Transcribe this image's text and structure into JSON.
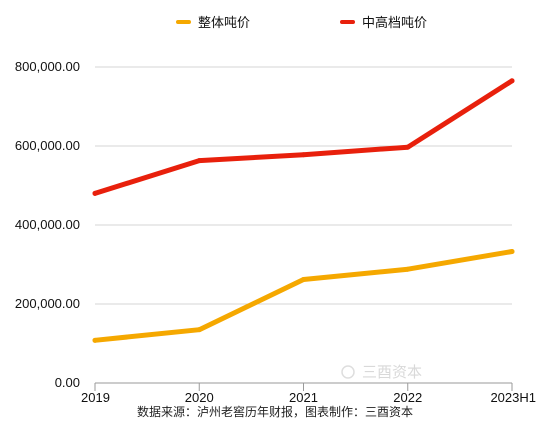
{
  "chart_data": {
    "type": "line",
    "categories": [
      "2019",
      "2020",
      "2021",
      "2022",
      "2023H1"
    ],
    "series": [
      {
        "name": "整体吨价",
        "color": "#f5a800",
        "values": [
          108000,
          135000,
          262000,
          288000,
          333000
        ]
      },
      {
        "name": "中高档吨价",
        "color": "#e8200c",
        "values": [
          480000,
          563000,
          578000,
          597000,
          765000
        ]
      }
    ],
    "y_ticks": [
      "0.00",
      "200,000.00",
      "400,000.00",
      "600,000.00",
      "800,000.00"
    ],
    "ylim": [
      0,
      800000
    ],
    "grid": true,
    "legend_position": "top",
    "xlabel": "",
    "ylabel": ""
  },
  "source_note": "数据来源：泸州老窖历年财报，图表制作：三酉资本",
  "watermark": "三酉资本"
}
